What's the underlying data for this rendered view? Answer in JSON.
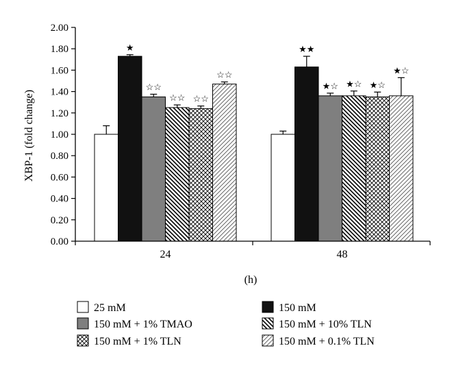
{
  "chart_data": {
    "type": "bar",
    "title": "",
    "xlabel": "(h)",
    "ylabel": "XBP-1 (fold change)",
    "ylim": [
      0,
      2.0
    ],
    "yticks": [
      "0.00",
      "0.20",
      "0.40",
      "0.60",
      "0.80",
      "1.00",
      "1.20",
      "1.40",
      "1.60",
      "1.80",
      "2.00"
    ],
    "categories": [
      "24",
      "48"
    ],
    "legend_position": "bottom",
    "series": [
      {
        "name": "25 mM",
        "fill": "white",
        "values": [
          1.0,
          1.0
        ],
        "errors": [
          0.08,
          0.03
        ],
        "marks": [
          "",
          ""
        ]
      },
      {
        "name": "150 mM",
        "fill": "black",
        "values": [
          1.73,
          1.63
        ],
        "errors": [
          0.015,
          0.1
        ],
        "marks": [
          "★",
          "★★"
        ]
      },
      {
        "name": "150 mM + 1% TMAO",
        "fill": "gray",
        "values": [
          1.35,
          1.36
        ],
        "errors": [
          0.025,
          0.025
        ],
        "marks": [
          "☆☆",
          "★☆"
        ]
      },
      {
        "name": "150 mM + 10% TLN",
        "fill": "diag-back",
        "values": [
          1.25,
          1.36
        ],
        "errors": [
          0.025,
          0.045
        ],
        "marks": [
          "☆☆",
          "★☆"
        ]
      },
      {
        "name": "150 mM + 1% TLN",
        "fill": "checker",
        "values": [
          1.24,
          1.35
        ],
        "errors": [
          0.025,
          0.045
        ],
        "marks": [
          "☆☆",
          "★☆"
        ]
      },
      {
        "name": "150 mM + 0.1% TLN",
        "fill": "diag-fwd",
        "values": [
          1.47,
          1.36
        ],
        "errors": [
          0.02,
          0.17
        ],
        "marks": [
          "☆☆",
          "★☆"
        ]
      }
    ]
  }
}
